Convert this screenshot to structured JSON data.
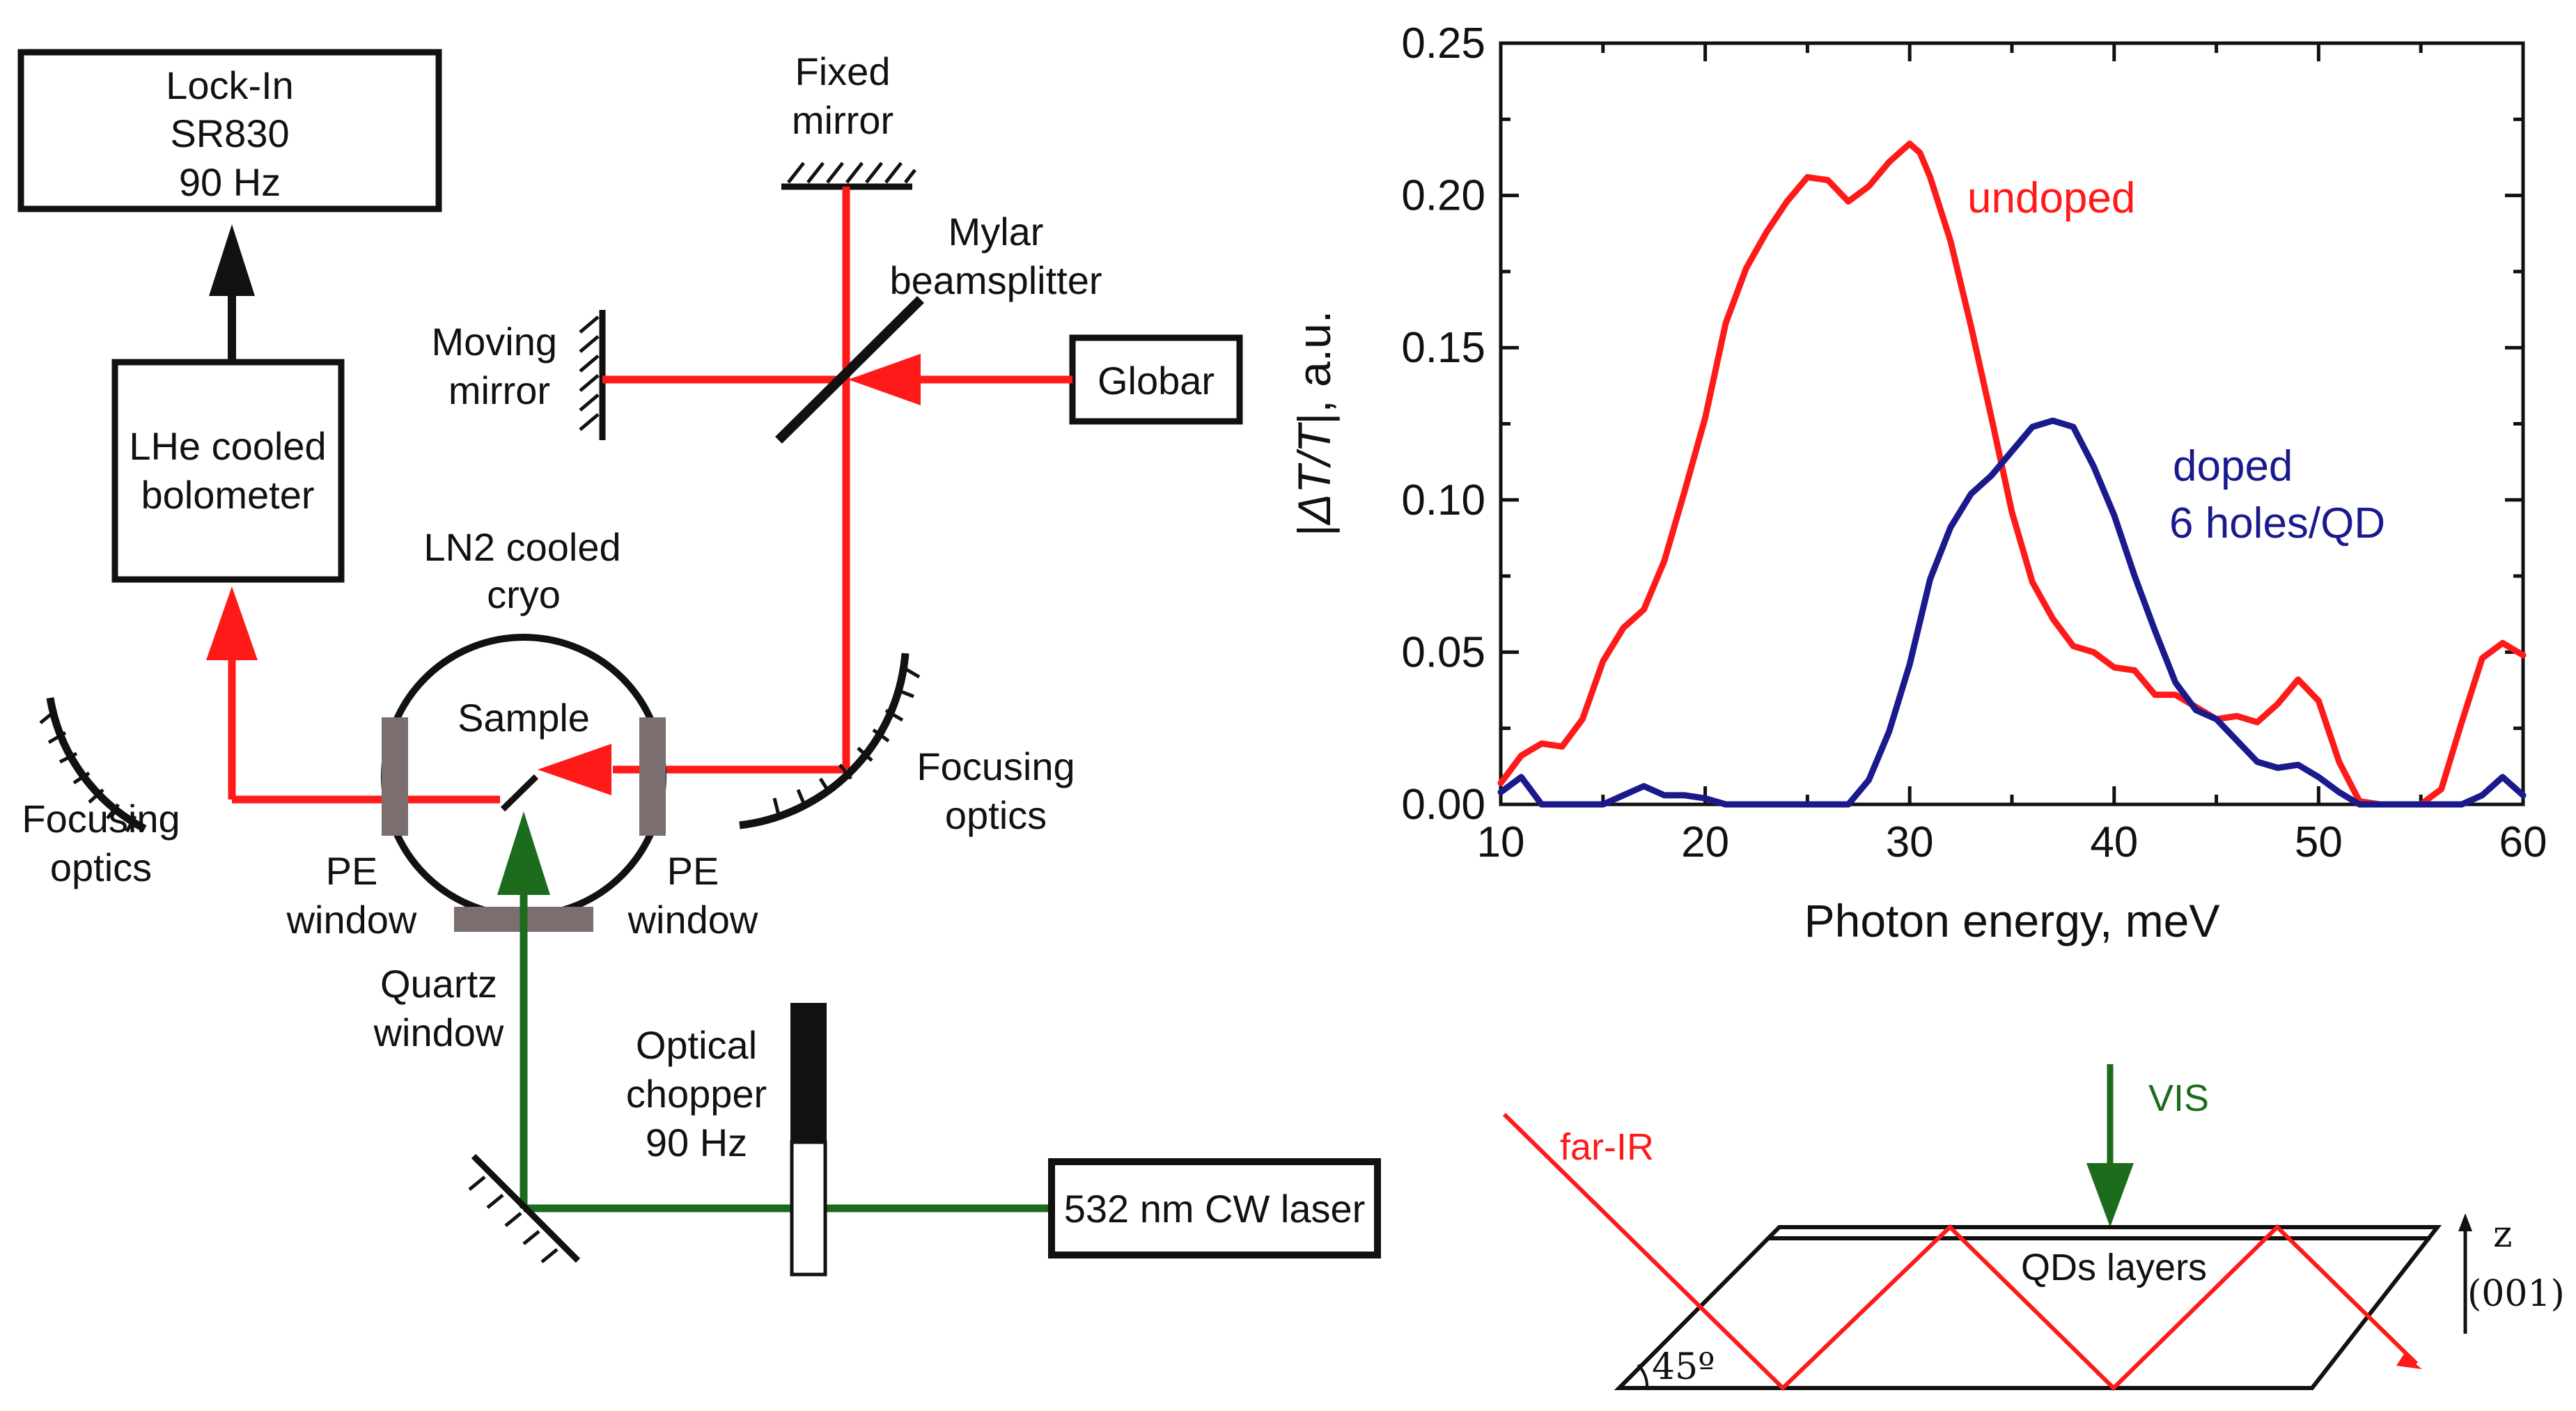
{
  "colors": {
    "beam_ir": "#ff1a1a",
    "beam_vis": "#1d6b1d",
    "doped": "#1a1a8c",
    "window": "#7a6e6e",
    "black": "#111111"
  },
  "setup": {
    "lockin": {
      "line1": "Lock-In",
      "line2": "SR830",
      "line3": "90 Hz"
    },
    "bolometer": {
      "line1": "LHe cooled",
      "line2": "bolometer"
    },
    "globar": "Globar",
    "laser": "532 nm CW laser",
    "fixed_mirror": {
      "line1": "Fixed",
      "line2": "mirror"
    },
    "moving_mirror": {
      "line1": "Moving",
      "line2": "mirror"
    },
    "beamsplitter": {
      "line1": "Mylar",
      "line2": "beamsplitter"
    },
    "cryo": {
      "line1": "LN2 cooled",
      "line2": "cryo"
    },
    "sample": "Sample",
    "focusing_left": {
      "line1": "Focusing",
      "line2": "optics"
    },
    "focusing_right": {
      "line1": "Focusing",
      "line2": "optics"
    },
    "pe_left": {
      "line1": "PE",
      "line2": "window"
    },
    "pe_right": {
      "line1": "PE",
      "line2": "window"
    },
    "quartz": {
      "line1": "Quartz",
      "line2": "window"
    },
    "chopper": {
      "line1": "Optical",
      "line2": "chopper",
      "line3": "90 Hz"
    }
  },
  "chart_data": {
    "type": "line",
    "xlabel": "Photon energy, meV",
    "ylabel_prefix": "|",
    "ylabel_delta": "Δ",
    "ylabel_T1": "T/T",
    "ylabel_suffix": "|, a.u.",
    "xlim": [
      10,
      60
    ],
    "ylim": [
      0,
      0.25
    ],
    "x_ticks": [
      "10",
      "20",
      "30",
      "40",
      "50",
      "60"
    ],
    "y_ticks": [
      "0.00",
      "0.05",
      "0.10",
      "0.15",
      "0.20",
      "0.25"
    ],
    "series": [
      {
        "name": "undoped",
        "label": "undoped",
        "color": "#ff1a1a",
        "x": [
          10,
          11,
          12,
          13,
          14,
          15,
          16,
          17,
          18,
          19,
          20,
          21,
          22,
          23,
          24,
          25,
          26,
          27,
          28,
          29,
          30,
          30.5,
          31,
          32,
          33,
          34,
          35,
          36,
          37,
          38,
          39,
          40,
          41,
          42,
          43,
          44,
          45,
          46,
          47,
          48,
          49,
          50,
          51,
          52,
          53,
          53.5,
          54.5,
          55,
          56,
          57,
          58,
          59,
          60
        ],
        "y": [
          0.007,
          0.016,
          0.02,
          0.019,
          0.028,
          0.047,
          0.058,
          0.064,
          0.08,
          0.103,
          0.127,
          0.158,
          0.176,
          0.188,
          0.198,
          0.206,
          0.205,
          0.198,
          0.203,
          0.211,
          0.217,
          0.214,
          0.206,
          0.185,
          0.157,
          0.127,
          0.096,
          0.073,
          0.061,
          0.052,
          0.05,
          0.045,
          0.044,
          0.036,
          0.036,
          0.032,
          0.028,
          0.029,
          0.027,
          0.033,
          0.041,
          0.034,
          0.014,
          0.001,
          0.0,
          0.0,
          0.0,
          0.0,
          0.005,
          0.027,
          0.048,
          0.053,
          0.049
        ]
      },
      {
        "name": "doped",
        "label1": "doped",
        "label2": "6 holes/QD",
        "color": "#1a1a8c",
        "x": [
          10,
          11,
          12,
          13,
          14,
          15,
          16,
          17,
          18,
          19,
          20,
          21,
          22,
          23,
          24,
          25,
          26,
          27,
          28,
          29,
          30,
          31,
          32,
          33,
          34,
          35,
          36,
          37,
          38,
          39,
          40,
          41,
          42,
          43,
          44,
          45,
          46,
          47,
          48,
          49,
          50,
          51,
          52,
          53,
          54,
          55,
          56,
          57,
          58,
          59,
          60
        ],
        "y": [
          0.004,
          0.009,
          0.0,
          0.0,
          0.0,
          0.0,
          0.003,
          0.006,
          0.003,
          0.003,
          0.002,
          0.0,
          0.0,
          0.0,
          0.0,
          0.0,
          0.0,
          0.0,
          0.008,
          0.024,
          0.046,
          0.074,
          0.091,
          0.102,
          0.108,
          0.116,
          0.124,
          0.126,
          0.124,
          0.111,
          0.095,
          0.075,
          0.057,
          0.04,
          0.031,
          0.028,
          0.021,
          0.014,
          0.012,
          0.013,
          0.009,
          0.004,
          0.0,
          0.0,
          0.0,
          0.0,
          0.0,
          0.0,
          0.003,
          0.009,
          0.003
        ]
      }
    ]
  },
  "inset": {
    "vis": "VIS",
    "farir": "far-IR",
    "qds": "QDs layers",
    "z": "z",
    "orient": "(001)",
    "angle": "45º"
  }
}
